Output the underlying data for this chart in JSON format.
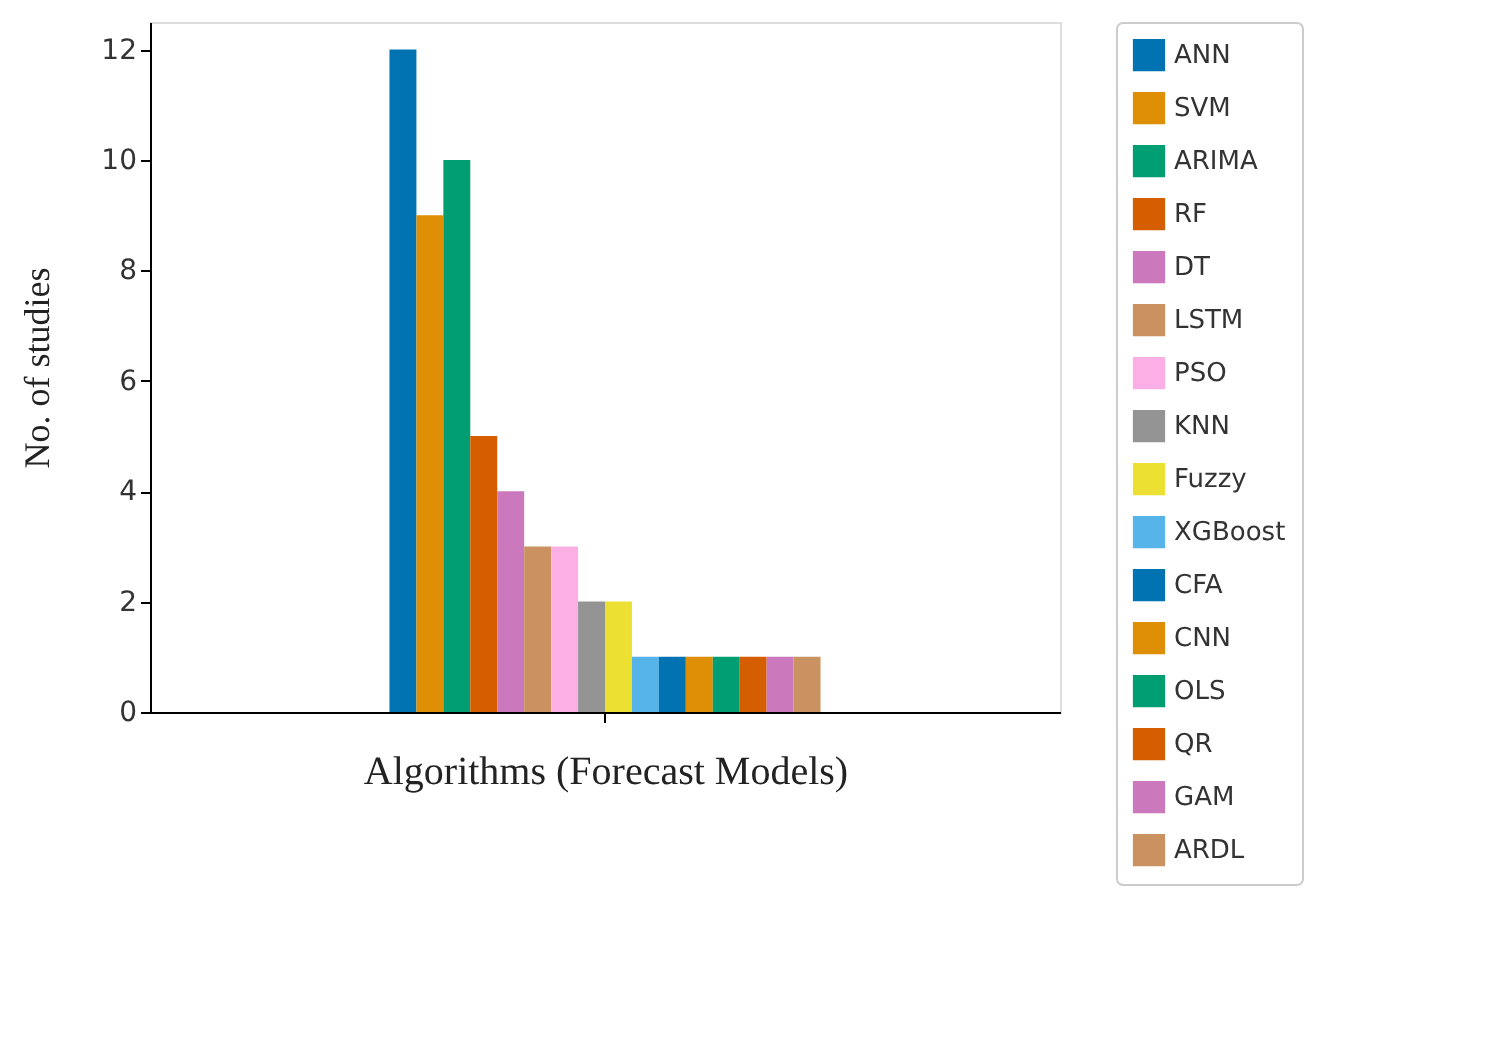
{
  "chart_data": {
    "type": "bar",
    "xlabel": "Algorithms (Forecast Models)",
    "ylabel": "No. of studies",
    "categories": [
      null
    ],
    "series": [
      {
        "name": "ANN",
        "color": "#0173b2",
        "values": [
          12
        ]
      },
      {
        "name": "SVM",
        "color": "#de8f05",
        "values": [
          9
        ]
      },
      {
        "name": "ARIMA",
        "color": "#029e73",
        "values": [
          10
        ]
      },
      {
        "name": "RF",
        "color": "#d55e00",
        "values": [
          5
        ]
      },
      {
        "name": "DT",
        "color": "#cc78bc",
        "values": [
          4
        ]
      },
      {
        "name": "LSTM",
        "color": "#ca9161",
        "values": [
          3
        ]
      },
      {
        "name": "PSO",
        "color": "#fbafe4",
        "values": [
          3
        ]
      },
      {
        "name": "KNN",
        "color": "#949494",
        "values": [
          2
        ]
      },
      {
        "name": "Fuzzy",
        "color": "#ece133",
        "values": [
          2
        ]
      },
      {
        "name": "XGBoost",
        "color": "#56b4e9",
        "values": [
          1
        ]
      },
      {
        "name": "CFA",
        "color": "#0173b2",
        "values": [
          1
        ]
      },
      {
        "name": "CNN",
        "color": "#de8f05",
        "values": [
          1
        ]
      },
      {
        "name": "OLS",
        "color": "#029e73",
        "values": [
          1
        ]
      },
      {
        "name": "QR",
        "color": "#d55e00",
        "values": [
          1
        ]
      },
      {
        "name": "GAM",
        "color": "#cc78bc",
        "values": [
          1
        ]
      },
      {
        "name": "ARDL",
        "color": "#ca9161",
        "values": [
          1
        ]
      }
    ],
    "ylim": [
      0,
      12.5
    ],
    "yticks": [
      0,
      2,
      4,
      6,
      8,
      10,
      12
    ],
    "grid": false,
    "legend": "right",
    "tick_labels": "y"
  }
}
